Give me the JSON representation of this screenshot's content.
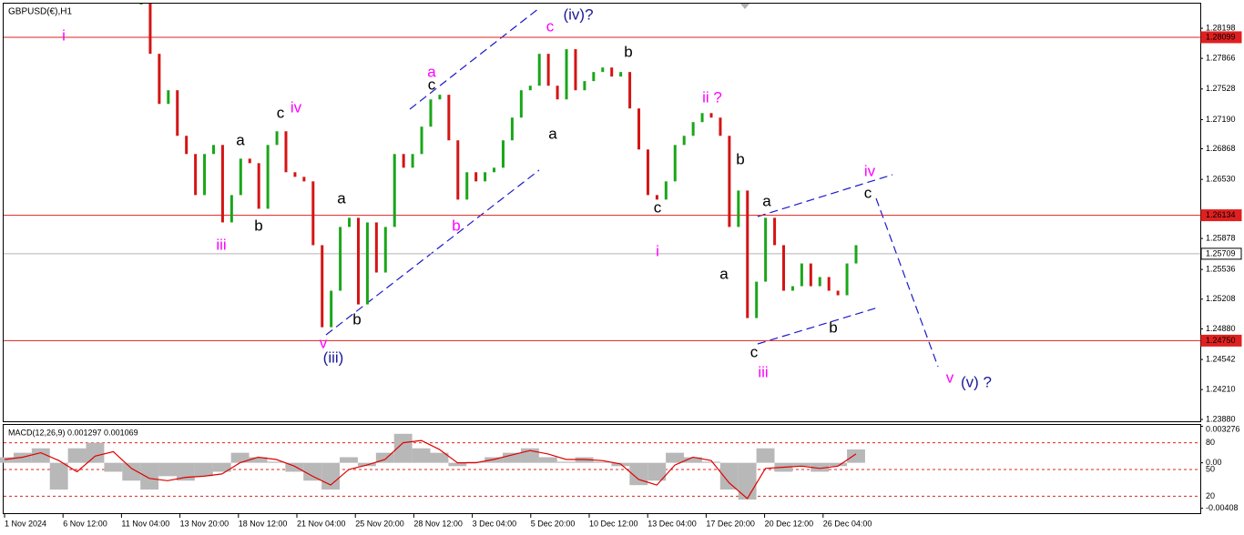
{
  "chart_data": [
    {
      "type": "price",
      "title": "GBPUSD(€),H1",
      "colors": {
        "up": "#1aa61a",
        "down": "#d41414"
      },
      "values": [
        1.2847,
        1.27916,
        1.27363,
        1.27514,
        1.27011,
        1.2681,
        1.26357,
        1.2681,
        1.2691,
        1.26055,
        1.26357,
        1.26759,
        1.26709,
        1.26206,
        1.2691,
        1.27061,
        1.26609,
        1.26558,
        1.26508,
        1.25804,
        1.24898,
        1.25301,
        1.26005,
        1.26106,
        1.2515,
        1.26055,
        1.25502,
        1.26005,
        1.2681,
        1.26659,
        1.2681,
        1.27112,
        1.27413,
        1.27464,
        1.26961,
        1.26307,
        1.26609,
        1.26508,
        1.26609,
        1.26659,
        1.26961,
        1.27212,
        1.27514,
        1.27564,
        1.27916,
        1.27564,
        1.27413,
        1.27967,
        1.27514,
        1.27615,
        1.27715,
        1.27765,
        1.27665,
        1.27715,
        1.27313,
        1.2686,
        1.26357,
        1.26307,
        1.26508,
        1.2691,
        1.27011,
        1.27162,
        1.27262,
        1.27212,
        1.27011,
        1.26005,
        1.26407,
        1.24999,
        1.25401,
        1.26106,
        1.25804,
        1.25301,
        1.25351,
        1.25602,
        1.25351,
        1.25452,
        1.25301,
        1.25251,
        1.25602,
        1.25804
      ],
      "ylim": [
        1.2386,
        1.2847
      ],
      "yticks": [
        1.28198,
        1.27866,
        1.27528,
        {
          "value": 1.2719,
          "label": "1.27190"
        },
        1.26868,
        {
          "value": 1.2653,
          "label": "1.26530"
        },
        1.25878,
        1.25536,
        1.25208,
        {
          "value": 1.2488,
          "label": "1.24880"
        },
        1.24542,
        {
          "value": 1.2421,
          "label": "1.24210"
        },
        {
          "value": 1.2388,
          "label": "1.23880"
        }
      ],
      "x_labels": [
        "1 Nov 2024",
        "6 Nov 12:00",
        "11 Nov 04:00",
        "13 Nov 20:00",
        "18 Nov 12:00",
        "21 Nov 04:00",
        "25 Nov 20:00",
        "28 Nov 12:00",
        "3 Dec 04:00",
        "5 Dec 20:00",
        "10 Dec 12:00",
        "13 Dec 04:00",
        "17 Dec 20:00",
        "20 Dec 12:00",
        "26 Dec 04:00"
      ],
      "hlines": [
        {
          "value": 1.28099,
          "label": "1.28099",
          "color": "#e02020"
        },
        {
          "value": 1.26134,
          "label": "1.26134",
          "color": "#e02020"
        },
        {
          "value": 1.2475,
          "label": "1.24750",
          "color": "#e02020"
        },
        {
          "value": 1.25709,
          "label": "1.25709",
          "color": "#b4b4b4"
        }
      ],
      "annotations": [
        {
          "text": "i",
          "color": "#ff00ff"
        },
        {
          "text": "iii",
          "color": "#ff00ff"
        },
        {
          "text": "a",
          "color": "#000000"
        },
        {
          "text": "b",
          "color": "#000000"
        },
        {
          "text": "c",
          "color": "#000000"
        },
        {
          "text": "iv",
          "color": "#ff00ff"
        },
        {
          "text": "a",
          "color": "#000000"
        },
        {
          "text": "b",
          "color": "#000000"
        },
        {
          "text": "v",
          "color": "#ff00ff"
        },
        {
          "text": "(iii)",
          "color": "#1a1a99"
        },
        {
          "text": "a",
          "color": "#ff00ff"
        },
        {
          "text": "c",
          "color": "#000000"
        },
        {
          "text": "b",
          "color": "#ff00ff"
        },
        {
          "text": "c",
          "color": "#ff00ff"
        },
        {
          "text": "(iv)?",
          "color": "#1a1a99"
        },
        {
          "text": "a",
          "color": "#000000"
        },
        {
          "text": "b",
          "color": "#000000"
        },
        {
          "text": "c",
          "color": "#000000"
        },
        {
          "text": "i",
          "color": "#ff00ff"
        },
        {
          "text": "ii ?",
          "color": "#ff00ff"
        },
        {
          "text": "b",
          "color": "#000000"
        },
        {
          "text": "a",
          "color": "#000000"
        },
        {
          "text": "a",
          "color": "#000000"
        },
        {
          "text": "c",
          "color": "#000000"
        },
        {
          "text": "iii",
          "color": "#ff00ff"
        },
        {
          "text": "b",
          "color": "#000000"
        },
        {
          "text": "iv",
          "color": "#ff00ff"
        },
        {
          "text": "c",
          "color": "#000000"
        },
        {
          "text": "v",
          "color": "#ff00ff"
        },
        {
          "text": "(v) ?",
          "color": "#1a1a99"
        }
      ]
    },
    {
      "type": "macd",
      "title": "MACD(12,26,9) 0.001297 0.001069",
      "series": [
        {
          "style": "histogram",
          "color": "#b8b8b8",
          "values": [
            0.0005,
            0.0009,
            0.0013,
            -0.0024,
            0.0013,
            0.0018,
            -0.0008,
            -0.0016,
            -0.0024,
            -0.0012,
            -0.0016,
            -0.0012,
            -0.0008,
            0.0009,
            0.0005,
            0.0001,
            -0.0008,
            -0.0016,
            -0.0024,
            0.0005,
            -0.0003,
            0.0009,
            0.0026,
            0.0013,
            0.0009,
            -0.0003,
            0.0001,
            0.0005,
            0.0009,
            0.0013,
            0.0005,
            0.0001,
            0.0005,
            0.0001,
            -0.0003,
            -0.002,
            -0.0016,
            0.0009,
            0.0005,
            0.0001,
            -0.0024,
            -0.0033,
            0.0013,
            -0.0008,
            -0.0003,
            -0.0008,
            -0.0003,
            0.0012
          ]
        },
        {
          "style": "line",
          "color": "#e00000",
          "values": [
            0.0003,
            0.0005,
            0.0009,
            0.0002,
            -0.0008,
            0.0006,
            0.001,
            -0.0005,
            -0.0014,
            -0.0016,
            -0.0013,
            -0.0012,
            -0.001,
            0,
            0.0005,
            0.0003,
            -0.0003,
            -0.0012,
            -0.002,
            -0.0006,
            -0.0002,
            0.0003,
            0.0018,
            0.002,
            0.0012,
            0,
            0,
            0.0003,
            0.0007,
            0.0011,
            0.0008,
            0.0003,
            0.0003,
            0.0002,
            -0.0001,
            -0.0015,
            -0.002,
            -0.0002,
            0.0005,
            0.0002,
            -0.0018,
            -0.0032,
            -0.0005,
            -0.0004,
            -0.0003,
            -0.0005,
            -0.0003,
            0.0008
          ]
        }
      ],
      "ylim": [
        -0.0046,
        0.0034
      ],
      "yticks": [
        0.003276,
        {
          "value": 0,
          "label": "0.00"
        },
        -0.00408
      ],
      "levels": [
        80,
        50,
        20
      ],
      "level_lim": [
        0,
        100
      ]
    }
  ]
}
